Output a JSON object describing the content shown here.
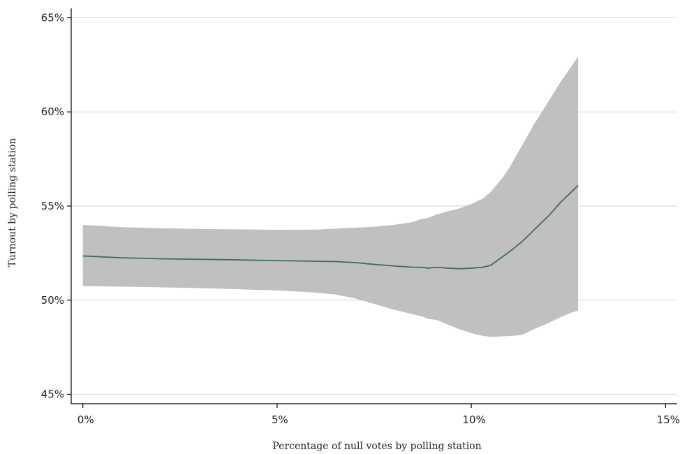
{
  "chart_data": {
    "type": "area",
    "title": "",
    "xlabel": "Percentage of null votes by polling station",
    "ylabel": "Turnout by polling station",
    "xlim": [
      -0.3,
      15.3
    ],
    "ylim": [
      44.5,
      65.5
    ],
    "x_ticks": [
      0,
      5,
      10,
      15
    ],
    "x_tick_labels": [
      "0%",
      "5%",
      "10%",
      "15%"
    ],
    "y_ticks": [
      45,
      50,
      55,
      60,
      65
    ],
    "y_tick_labels": [
      "45%",
      "50%",
      "55%",
      "60%",
      "65%"
    ],
    "grid": "horizontal",
    "colors": {
      "band": "#c0c0c0",
      "line": "#3d6b67",
      "grid": "#d6d6d6",
      "axis": "#000000"
    },
    "series": [
      {
        "type": "line",
        "x": [
          0,
          1,
          2,
          3,
          4,
          5,
          6,
          6.5,
          7,
          7.5,
          8,
          8.5,
          8.7,
          8.9,
          9.1,
          9.4,
          9.7,
          10.0,
          10.3,
          10.5,
          10.8,
          11.0,
          11.3,
          11.6,
          12.0,
          12.3,
          12.6,
          12.75
        ],
        "y": [
          52.35,
          52.25,
          52.2,
          52.17,
          52.14,
          52.1,
          52.07,
          52.05,
          52.0,
          51.9,
          51.82,
          51.75,
          51.75,
          51.7,
          51.75,
          51.7,
          51.67,
          51.7,
          51.75,
          51.85,
          52.3,
          52.6,
          53.1,
          53.7,
          54.5,
          55.2,
          55.8,
          56.1
        ]
      },
      {
        "type": "band",
        "x": [
          0,
          1,
          2,
          3,
          4,
          5,
          6,
          6.5,
          7,
          7.5,
          8,
          8.5,
          8.7,
          8.9,
          9.1,
          9.4,
          9.7,
          10.0,
          10.3,
          10.5,
          10.8,
          11.0,
          11.3,
          11.6,
          12.0,
          12.3,
          12.6,
          12.75
        ],
        "upper": [
          54.0,
          53.88,
          53.82,
          53.78,
          53.76,
          53.74,
          53.75,
          53.8,
          53.85,
          53.9,
          54.0,
          54.15,
          54.3,
          54.38,
          54.55,
          54.72,
          54.88,
          55.1,
          55.4,
          55.75,
          56.5,
          57.1,
          58.2,
          59.3,
          60.6,
          61.6,
          62.5,
          62.95
        ],
        "lower": [
          50.75,
          50.72,
          50.68,
          50.64,
          50.58,
          50.52,
          50.4,
          50.3,
          50.1,
          49.8,
          49.5,
          49.25,
          49.15,
          49.0,
          48.95,
          48.7,
          48.45,
          48.25,
          48.1,
          48.05,
          48.08,
          48.1,
          48.15,
          48.45,
          48.8,
          49.1,
          49.35,
          49.45
        ]
      }
    ]
  }
}
